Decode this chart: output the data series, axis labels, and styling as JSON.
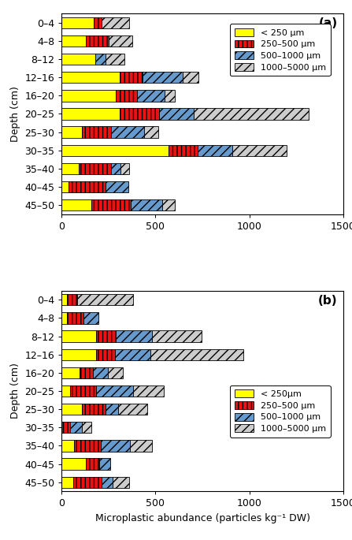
{
  "depth_labels": [
    "0–4",
    "4–8",
    "8–12",
    "12–16",
    "16–20",
    "20–25",
    "25–30",
    "30–35",
    "35–40",
    "40–45",
    "45–50"
  ],
  "panel_a": {
    "yellow": [
      170,
      130,
      180,
      310,
      290,
      310,
      110,
      570,
      90,
      35,
      160
    ],
    "red": [
      45,
      120,
      0,
      120,
      110,
      210,
      155,
      155,
      175,
      200,
      210
    ],
    "blue": [
      0,
      0,
      55,
      215,
      150,
      185,
      175,
      185,
      50,
      120,
      165
    ],
    "gray": [
      145,
      125,
      100,
      85,
      55,
      610,
      75,
      290,
      45,
      0,
      70
    ]
  },
  "panel_b": {
    "yellow": [
      30,
      30,
      185,
      185,
      95,
      45,
      110,
      0,
      65,
      130,
      60
    ],
    "red": [
      55,
      85,
      105,
      100,
      70,
      140,
      125,
      45,
      145,
      70,
      155
    ],
    "blue": [
      0,
      80,
      190,
      190,
      80,
      195,
      65,
      65,
      155,
      60,
      55
    ],
    "gray": [
      295,
      0,
      265,
      495,
      80,
      165,
      155,
      50,
      115,
      0,
      90
    ]
  },
  "xlim": [
    0,
    1500
  ],
  "xticks": [
    0,
    500,
    1000,
    1500
  ],
  "yellow_color": "#FFFF00",
  "red_color": "#EE1111",
  "blue_color": "#6699CC",
  "gray_color": "#CCCCCC",
  "legend_labels_a": [
    "< 250 μm",
    "250–500 μm",
    "500–1000 μm",
    "1000–5000 μm"
  ],
  "legend_labels_b": [
    "< 250μm",
    "250–500 μm",
    "500–1000 μm",
    "1000–5000 μm"
  ],
  "xlabel": "Microplastic abundance (particles kg⁻¹ DW)",
  "ylabel": "Depth (cm)",
  "panel_labels": [
    "(a)",
    "(b)"
  ]
}
